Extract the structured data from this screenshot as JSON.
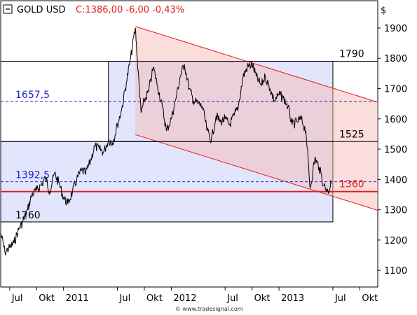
{
  "chart_data": {
    "type": "line",
    "instrument": "GOLD USD",
    "quote": "C:1386,00 -6,00 -0,43%",
    "currency_label": "$",
    "footer": "© www.tradesignal.com",
    "y_ticks": [
      1100,
      1200,
      1300,
      1400,
      1500,
      1600,
      1700,
      1800,
      1900
    ],
    "ylim": [
      1045,
      1990
    ],
    "x_ticks": [
      {
        "label": "Jul",
        "date": "2010-07"
      },
      {
        "label": "Okt",
        "date": "2010-10"
      },
      {
        "label": "2011",
        "date": "2011-01"
      },
      {
        "label": "Jul",
        "date": "2011-07"
      },
      {
        "label": "Okt",
        "date": "2011-10"
      },
      {
        "label": "2012",
        "date": "2012-01"
      },
      {
        "label": "Jul",
        "date": "2012-07"
      },
      {
        "label": "Okt",
        "date": "2012-10"
      },
      {
        "label": "2013",
        "date": "2013-01"
      },
      {
        "label": "Jul",
        "date": "2013-07"
      },
      {
        "label": "Okt",
        "date": "2013-10"
      }
    ],
    "xlim": [
      "2010-06",
      "2013-12"
    ],
    "series": [
      {
        "color": "#000000",
        "points": [
          [
            "2010-06",
            1225
          ],
          [
            "2010-06-15",
            1160
          ],
          [
            "2010-07",
            1175
          ],
          [
            "2010-07-15",
            1190
          ],
          [
            "2010-08",
            1235
          ],
          [
            "2010-08-15",
            1260
          ],
          [
            "2010-09",
            1300
          ],
          [
            "2010-09-15",
            1350
          ],
          [
            "2010-10",
            1365
          ],
          [
            "2010-10-15",
            1380
          ],
          [
            "2010-11",
            1405
          ],
          [
            "2010-11-15",
            1360
          ],
          [
            "2010-12",
            1420
          ],
          [
            "2010-12-15",
            1390
          ],
          [
            "2011-01",
            1340
          ],
          [
            "2011-01-15",
            1320
          ],
          [
            "2011-02",
            1360
          ],
          [
            "2011-02-15",
            1400
          ],
          [
            "2011-03",
            1430
          ],
          [
            "2011-03-15",
            1420
          ],
          [
            "2011-04",
            1460
          ],
          [
            "2011-04-15",
            1510
          ],
          [
            "2011-05",
            1500
          ],
          [
            "2011-05-15",
            1490
          ],
          [
            "2011-06",
            1530
          ],
          [
            "2011-06-15",
            1520
          ],
          [
            "2011-07",
            1580
          ],
          [
            "2011-07-15",
            1630
          ],
          [
            "2011-08",
            1720
          ],
          [
            "2011-08-15",
            1800
          ],
          [
            "2011-09",
            1900
          ],
          [
            "2011-09-10",
            1760
          ],
          [
            "2011-09-20",
            1620
          ],
          [
            "2011-10",
            1660
          ],
          [
            "2011-10-15",
            1690
          ],
          [
            "2011-11",
            1770
          ],
          [
            "2011-11-15",
            1710
          ],
          [
            "2011-12",
            1640
          ],
          [
            "2011-12-15",
            1560
          ],
          [
            "2012-01",
            1600
          ],
          [
            "2012-01-15",
            1660
          ],
          [
            "2012-02",
            1740
          ],
          [
            "2012-02-15",
            1780
          ],
          [
            "2012-03",
            1700
          ],
          [
            "2012-03-15",
            1660
          ],
          [
            "2012-04",
            1650
          ],
          [
            "2012-04-15",
            1640
          ],
          [
            "2012-05",
            1560
          ],
          [
            "2012-05-15",
            1530
          ],
          [
            "2012-06",
            1610
          ],
          [
            "2012-06-15",
            1590
          ],
          [
            "2012-07",
            1600
          ],
          [
            "2012-07-15",
            1580
          ],
          [
            "2012-08",
            1610
          ],
          [
            "2012-08-15",
            1640
          ],
          [
            "2012-09",
            1740
          ],
          [
            "2012-09-15",
            1770
          ],
          [
            "2012-10",
            1780
          ],
          [
            "2012-10-15",
            1740
          ],
          [
            "2012-11",
            1710
          ],
          [
            "2012-11-15",
            1740
          ],
          [
            "2012-12",
            1700
          ],
          [
            "2012-12-15",
            1660
          ],
          [
            "2013-01",
            1680
          ],
          [
            "2013-01-15",
            1670
          ],
          [
            "2013-02",
            1640
          ],
          [
            "2013-02-15",
            1580
          ],
          [
            "2013-03",
            1590
          ],
          [
            "2013-03-15",
            1600
          ],
          [
            "2013-04",
            1560
          ],
          [
            "2013-04-15",
            1370
          ],
          [
            "2013-05",
            1470
          ],
          [
            "2013-05-15",
            1440
          ],
          [
            "2013-06",
            1380
          ],
          [
            "2013-06-15",
            1360
          ],
          [
            "2013-06-25",
            1386
          ]
        ]
      }
    ],
    "channel": {
      "upper": [
        [
          "2011-09",
          1905
        ],
        [
          "2013-12",
          1655
        ]
      ],
      "lower": [
        [
          "2011-09",
          1548
        ],
        [
          "2013-12",
          1298
        ]
      ]
    },
    "boxes": [
      {
        "from": "2010-06",
        "to": "2013-07",
        "low": 1260,
        "high": 1525
      },
      {
        "from": "2011-06",
        "to": "2013-07",
        "low": 1525,
        "high": 1790
      }
    ],
    "levels": [
      {
        "value": 1790,
        "label": "1790",
        "style": "solid",
        "color": "#000000"
      },
      {
        "value": 1657.5,
        "label": "1657,5",
        "style": "dashed",
        "color": "#2222cc"
      },
      {
        "value": 1525,
        "label": "1525",
        "style": "solid",
        "color": "#000000"
      },
      {
        "value": 1392.5,
        "label": "1392,5",
        "style": "dashed",
        "color": "#2222cc"
      },
      {
        "value": 1360,
        "label": "1360",
        "style": "solid",
        "color": "#e31b1b"
      },
      {
        "value": 1260,
        "label": "1260",
        "style": "solid",
        "color": "#000000"
      }
    ]
  }
}
